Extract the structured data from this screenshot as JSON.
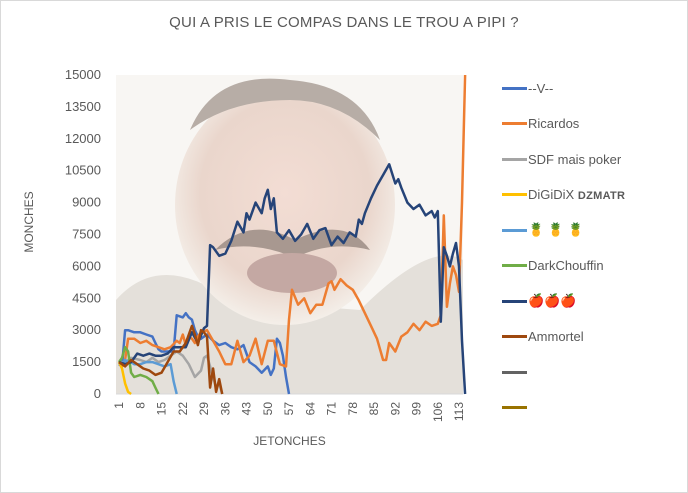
{
  "chart_data": {
    "type": "line",
    "title": "QUI A PRIS LE COMPAS DANS LE TROU A PIPI ?",
    "xlabel": "JETONCHES",
    "ylabel": "MONCHES",
    "ylim": [
      0,
      15000
    ],
    "xlim": [
      1,
      115
    ],
    "yticks": [
      0,
      1500,
      3000,
      4500,
      6000,
      7500,
      9000,
      10500,
      12000,
      13500,
      15000
    ],
    "xticks": [
      1,
      8,
      15,
      22,
      29,
      36,
      43,
      50,
      57,
      64,
      71,
      78,
      85,
      92,
      99,
      106,
      113
    ],
    "grid": false,
    "legend": "right",
    "background": "faded photo of laughing man (plot area background image)",
    "series": [
      {
        "name": "--V--",
        "color": "#4472C4",
        "x": [
          1,
          2,
          3,
          4,
          6,
          8,
          10,
          12,
          13,
          14,
          15,
          17,
          19,
          20,
          22,
          23,
          24,
          25,
          26,
          27,
          28,
          30,
          32,
          34,
          36,
          38,
          40,
          42,
          44,
          46,
          48,
          50,
          51,
          52,
          53,
          54,
          55,
          56,
          57
        ],
        "y": [
          1400,
          1300,
          3000,
          3000,
          2900,
          2900,
          2800,
          2700,
          2400,
          2100,
          2000,
          2000,
          2000,
          3700,
          3600,
          3800,
          3600,
          3500,
          3000,
          2700,
          2600,
          2800,
          2500,
          2300,
          2400,
          2200,
          2100,
          2300,
          1500,
          1300,
          1000,
          1300,
          900,
          1200,
          2600,
          2400,
          1800,
          800,
          0
        ]
      },
      {
        "name": "Ricardos",
        "color": "#ED7D31",
        "x": [
          1,
          2,
          3,
          4,
          6,
          8,
          10,
          12,
          14,
          16,
          18,
          20,
          21,
          22,
          23,
          24,
          25,
          26,
          27,
          28,
          30,
          32,
          34,
          36,
          38,
          40,
          42,
          44,
          46,
          48,
          50,
          52,
          54,
          56,
          57,
          58,
          60,
          62,
          64,
          66,
          68,
          70,
          71,
          72,
          74,
          76,
          78,
          80,
          82,
          84,
          86,
          88,
          89,
          90,
          92,
          94,
          96,
          98,
          100,
          102,
          104,
          106,
          107,
          108,
          109,
          110,
          111,
          112,
          113,
          114,
          115
        ],
        "y": [
          1500,
          1300,
          1600,
          2600,
          2600,
          2400,
          2500,
          2300,
          2200,
          2100,
          2200,
          2500,
          2400,
          2800,
          2300,
          2700,
          2600,
          2400,
          2700,
          2900,
          3000,
          2500,
          2000,
          1400,
          1400,
          2500,
          1500,
          1800,
          2600,
          1400,
          2500,
          2500,
          1400,
          1300,
          3500,
          4900,
          4200,
          4500,
          3800,
          4200,
          4200,
          5200,
          5300,
          4900,
          5400,
          5100,
          4900,
          4400,
          3800,
          3200,
          2600,
          1600,
          1600,
          2400,
          2000,
          2700,
          2900,
          3300,
          3000,
          3400,
          3200,
          3300,
          3700,
          8400,
          4100,
          5200,
          6000,
          5600,
          4800,
          9000,
          15000
        ]
      },
      {
        "name": "SDF mais poker",
        "color": "#A5A5A5",
        "x": [
          1,
          3,
          5,
          8,
          10,
          12,
          14,
          16,
          18,
          20,
          22,
          24,
          26,
          28,
          29,
          30,
          31,
          32,
          33,
          34,
          35
        ],
        "y": [
          1500,
          1500,
          1700,
          1600,
          1500,
          1700,
          1500,
          1600,
          1800,
          2000,
          1800,
          1400,
          800,
          1100,
          1700,
          1800,
          1300,
          800,
          300,
          500,
          0
        ]
      },
      {
        "name": "DiGiDiX DZMATR",
        "color": "#FFC000",
        "x": [
          1,
          2,
          3,
          4,
          5
        ],
        "y": [
          1500,
          1200,
          500,
          100,
          0
        ]
      },
      {
        "name": "🍍 🍍 🍍",
        "color": "#5B9BD5",
        "x": [
          1,
          2,
          3,
          4,
          5,
          6,
          8,
          10,
          12,
          14,
          16,
          18,
          19,
          20
        ],
        "y": [
          1500,
          1400,
          1600,
          1500,
          1500,
          1400,
          1400,
          1500,
          1500,
          1400,
          1300,
          1400,
          600,
          0
        ]
      },
      {
        "name": "DarkChouffin",
        "color": "#70AD47",
        "x": [
          1,
          2,
          3,
          4,
          5,
          6,
          8,
          10,
          12,
          13,
          14
        ],
        "y": [
          1500,
          1700,
          2200,
          2000,
          1000,
          800,
          900,
          800,
          600,
          300,
          0
        ]
      },
      {
        "name": "🍎🍎🍎",
        "color": "#264478",
        "x": [
          1,
          3,
          5,
          7,
          9,
          11,
          13,
          15,
          17,
          19,
          21,
          23,
          25,
          27,
          29,
          30,
          31,
          32,
          34,
          36,
          38,
          40,
          42,
          43,
          44,
          46,
          48,
          49,
          50,
          51,
          52,
          53,
          55,
          57,
          59,
          61,
          63,
          65,
          67,
          69,
          71,
          73,
          75,
          77,
          79,
          80,
          81,
          82,
          84,
          86,
          88,
          90,
          92,
          93,
          94,
          96,
          98,
          100,
          102,
          104,
          105,
          106,
          107,
          108,
          109,
          110,
          111,
          112,
          113,
          114,
          115
        ],
        "y": [
          1500,
          1400,
          1500,
          1900,
          1800,
          1900,
          1800,
          1800,
          1900,
          2200,
          2200,
          2200,
          2900,
          2400,
          3100,
          3200,
          7000,
          6900,
          6500,
          6600,
          7200,
          8100,
          7600,
          8500,
          8200,
          9000,
          8500,
          9200,
          9600,
          8700,
          9200,
          7600,
          7300,
          7700,
          7200,
          7500,
          8000,
          7300,
          7700,
          7800,
          7000,
          7400,
          7100,
          7600,
          7400,
          8200,
          8000,
          8500,
          9200,
          9800,
          10300,
          10800,
          9900,
          10100,
          9700,
          9000,
          8700,
          8900,
          8400,
          8600,
          8300,
          8600,
          3400,
          6900,
          6500,
          6000,
          6600,
          7100,
          6000,
          2500,
          0
        ]
      },
      {
        "name": "Ammortel",
        "color": "#9E480E",
        "x": [
          1,
          3,
          5,
          7,
          9,
          11,
          13,
          15,
          17,
          19,
          21,
          23,
          25,
          26,
          27,
          28,
          29,
          30,
          31,
          32,
          33,
          34,
          35
        ],
        "y": [
          1500,
          1300,
          1600,
          1400,
          1200,
          1100,
          900,
          1000,
          1500,
          2000,
          2000,
          2400,
          3200,
          2800,
          2300,
          3000,
          2900,
          2700,
          300,
          1200,
          100,
          700,
          0
        ]
      },
      {
        "name": "",
        "color": "#636363",
        "x": [],
        "y": []
      },
      {
        "name": "",
        "color": "#997300",
        "x": [],
        "y": []
      }
    ]
  }
}
